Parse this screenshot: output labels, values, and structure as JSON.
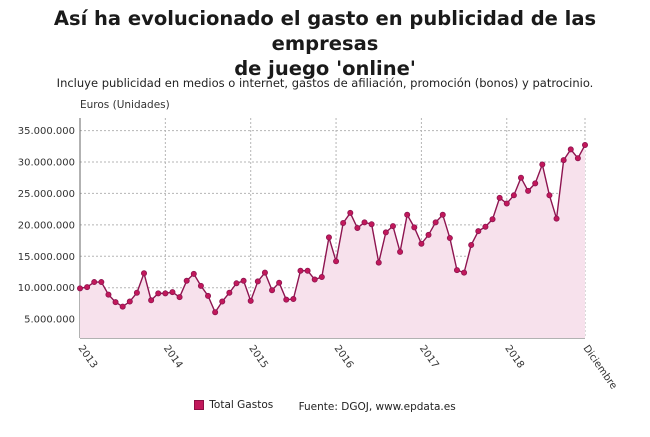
{
  "title_line1": "Así ha evolucionado el gasto en publicidad de las empresas",
  "title_line2": "de juego 'online'",
  "subtitle": "Incluye publicidad en medios o internet, gastos de afiliación, promoción (bonos) y patrocinio.",
  "legend": {
    "series_label": "Total Gastos",
    "source": "Fuente: DGOJ, www.epdata.es"
  },
  "colors": {
    "line": "#8e1450",
    "marker": "#c2185b",
    "area": "#f7e1ec",
    "grid": "#b5b5b5"
  },
  "chart_data": {
    "type": "area",
    "ylabel": "Euros (Unidades)",
    "ylim": [
      2000000,
      37000000
    ],
    "yticks": [
      5000000,
      10000000,
      15000000,
      20000000,
      25000000,
      30000000,
      35000000
    ],
    "ytick_labels": [
      "5.000.000",
      "10.000.000",
      "15.000.000",
      "20.000.000",
      "25.000.000",
      "30.000.000",
      "35.000.000"
    ],
    "xticks": [
      0,
      12,
      24,
      36,
      48,
      60,
      71
    ],
    "xtick_labels": [
      "2013",
      "2014",
      "2015",
      "2016",
      "2017",
      "2018",
      "Diciembre"
    ],
    "grid": true,
    "series": [
      {
        "name": "Total Gastos",
        "x": [
          0,
          1,
          2,
          3,
          4,
          5,
          6,
          7,
          8,
          9,
          10,
          11,
          12,
          13,
          14,
          15,
          16,
          17,
          18,
          19,
          20,
          21,
          22,
          23,
          24,
          25,
          26,
          27,
          28,
          29,
          30,
          31,
          32,
          33,
          34,
          35,
          36,
          37,
          38,
          39,
          40,
          41,
          42,
          43,
          44,
          45,
          46,
          47,
          48,
          49,
          50,
          51,
          52,
          53,
          54,
          55,
          56,
          57,
          58,
          59,
          60,
          61,
          62,
          63,
          64,
          65,
          66,
          67,
          68,
          69,
          70,
          71
        ],
        "values": [
          9900000,
          10100000,
          10900000,
          10900000,
          8900000,
          7700000,
          7000000,
          7800000,
          9200000,
          12300000,
          8000000,
          9100000,
          9100000,
          9300000,
          8500000,
          11100000,
          12200000,
          10300000,
          8700000,
          6100000,
          7800000,
          9200000,
          10700000,
          11100000,
          7900000,
          11000000,
          12400000,
          9600000,
          10800000,
          8100000,
          8200000,
          12700000,
          12700000,
          11300000,
          11700000,
          18000000,
          14200000,
          20300000,
          21900000,
          19500000,
          20400000,
          20100000,
          14000000,
          18800000,
          19800000,
          15700000,
          21600000,
          19600000,
          17000000,
          18400000,
          20400000,
          21600000,
          17900000,
          12800000,
          12400000,
          16800000,
          19000000,
          19700000,
          20900000,
          24300000,
          23400000,
          24700000,
          27500000,
          25400000,
          26600000,
          29600000,
          24700000,
          21000000,
          30300000,
          32000000,
          30600000,
          32700000
        ]
      }
    ]
  }
}
